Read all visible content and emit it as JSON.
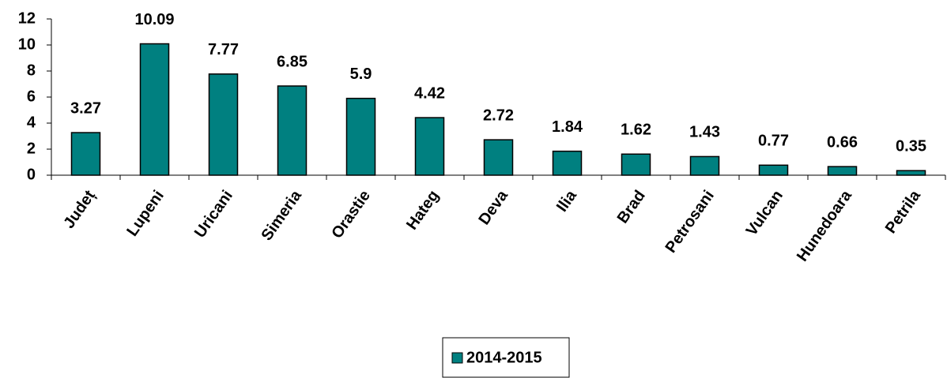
{
  "chart_data": {
    "type": "bar",
    "categories": [
      "Județ",
      "Lupeni",
      "Uricani",
      "Simeria",
      "Orastie",
      "Hateg",
      "Deva",
      "Ilia",
      "Brad",
      "Petrosani",
      "Vulcan",
      "Hunedoara",
      "Petrila"
    ],
    "series": [
      {
        "name": "2014-2015",
        "color": "#008080",
        "values": [
          3.27,
          10.09,
          7.77,
          6.85,
          5.9,
          4.42,
          2.72,
          1.84,
          1.62,
          1.43,
          0.77,
          0.66,
          0.35
        ]
      }
    ],
    "ylim": [
      0,
      12
    ],
    "yticks": [
      0,
      2,
      4,
      6,
      8,
      10,
      12
    ],
    "grid": false,
    "legend": "bottom"
  }
}
